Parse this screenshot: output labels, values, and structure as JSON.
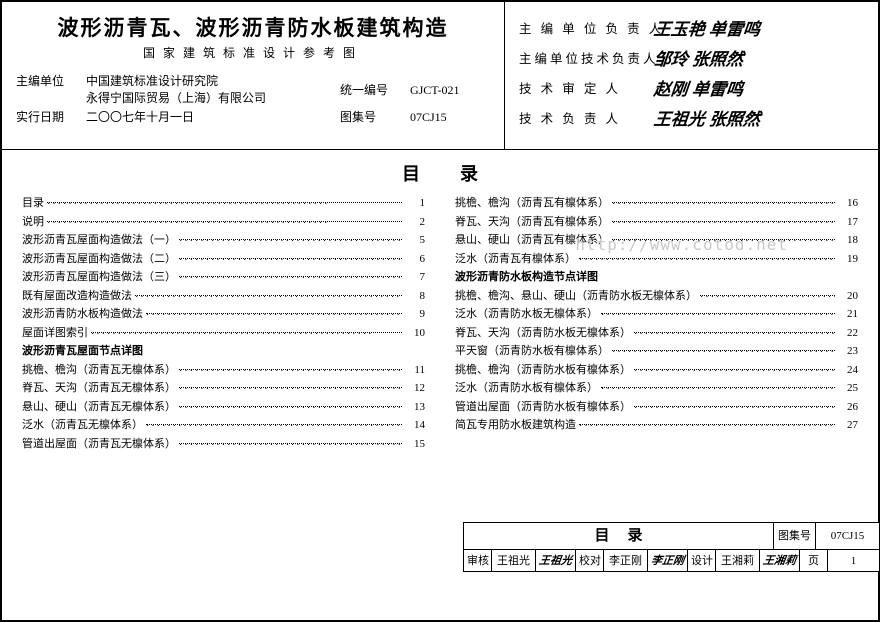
{
  "header": {
    "main_title": "波形沥青瓦、波形沥青防水板建筑构造",
    "sub_title": "国家建筑标准设计参考图",
    "editor_unit_label": "主编单位",
    "editor_unit_1": "中国建筑标准设计研究院",
    "editor_unit_2": "永得宁国际贸易（上海）有限公司",
    "date_label": "实行日期",
    "date_value": "二〇〇七年十月一日",
    "code_label": "统一编号",
    "code_value": "GJCT-021",
    "set_label": "图集号",
    "set_value": "07CJ15"
  },
  "signoffs": [
    {
      "label": "主 编 单 位 负 责 人",
      "value": "王玉艳 单雷鸣"
    },
    {
      "label": "主编单位技术负责人",
      "value": "邹玲 张照然"
    },
    {
      "label": "技 术 审 定 人",
      "value": "赵刚 单雷鸣"
    },
    {
      "label": "技 术 负 责 人",
      "value": "王祖光 张照然"
    }
  ],
  "toc_heading": "目录",
  "toc_left": [
    {
      "label": "目录",
      "page": "1"
    },
    {
      "label": "说明",
      "page": "2"
    },
    {
      "label": "波形沥青瓦屋面构造做法（一）",
      "page": "5"
    },
    {
      "label": "波形沥青瓦屋面构造做法（二）",
      "page": "6"
    },
    {
      "label": "波形沥青瓦屋面构造做法（三）",
      "page": "7"
    },
    {
      "label": "既有屋面改造构造做法",
      "page": "8"
    },
    {
      "label": "波形沥青防水板构造做法",
      "page": "9"
    },
    {
      "label": "屋面详图索引",
      "page": "10"
    },
    {
      "section": "波形沥青瓦屋面节点详图"
    },
    {
      "label": "挑檐、檐沟（沥青瓦无檩体系）",
      "page": "11"
    },
    {
      "label": "脊瓦、天沟（沥青瓦无檩体系）",
      "page": "12"
    },
    {
      "label": "悬山、硬山（沥青瓦无檩体系）",
      "page": "13"
    },
    {
      "label": "泛水（沥青瓦无檩体系）",
      "page": "14"
    },
    {
      "label": "管道出屋面（沥青瓦无檩体系）",
      "page": "15"
    }
  ],
  "toc_right": [
    {
      "label": "挑檐、檐沟（沥青瓦有檩体系）",
      "page": "16"
    },
    {
      "label": "脊瓦、天沟（沥青瓦有檩体系）",
      "page": "17"
    },
    {
      "label": "悬山、硬山（沥青瓦有檩体系）",
      "page": "18"
    },
    {
      "label": "泛水（沥青瓦有檩体系）",
      "page": "19"
    },
    {
      "section": "波形沥青防水板构造节点详图"
    },
    {
      "label": "挑檐、檐沟、悬山、硬山（沥青防水板无檩体系）",
      "page": "20"
    },
    {
      "label": "泛水（沥青防水板无檩体系）",
      "page": "21"
    },
    {
      "label": "脊瓦、天沟（沥青防水板无檩体系）",
      "page": "22"
    },
    {
      "label": "平天窗（沥青防水板有檩体系）",
      "page": "23"
    },
    {
      "label": "挑檐、檐沟（沥青防水板有檩体系）",
      "page": "24"
    },
    {
      "label": "泛水（沥青防水板有檩体系）",
      "page": "25"
    },
    {
      "label": "管道出屋面（沥青防水板有檩体系）",
      "page": "26"
    },
    {
      "label": "简瓦专用防水板建筑构造",
      "page": "27"
    }
  ],
  "watermark": "http://www.cotod.net",
  "titleblock": {
    "title": "目录",
    "set_label": "图集号",
    "set_value": "07CJ15",
    "row": [
      {
        "l": "审核",
        "v": "王祖光",
        "s": "王祖光"
      },
      {
        "l": "校对",
        "v": "李正刚",
        "s": "李正刚"
      },
      {
        "l": "设计",
        "v": "王湘莉",
        "s": "王湘莉"
      }
    ],
    "page_label": "页",
    "page_value": "1"
  }
}
